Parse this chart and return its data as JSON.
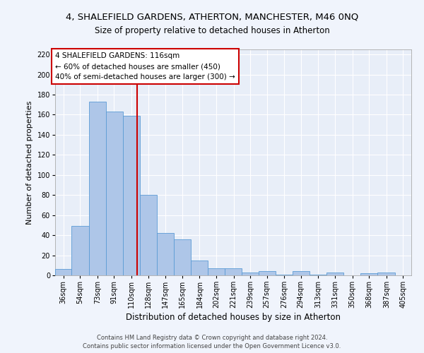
{
  "title1": "4, SHALEFIELD GARDENS, ATHERTON, MANCHESTER, M46 0NQ",
  "title2": "Size of property relative to detached houses in Atherton",
  "xlabel": "Distribution of detached houses by size in Atherton",
  "ylabel": "Number of detached properties",
  "categories": [
    "36sqm",
    "54sqm",
    "73sqm",
    "91sqm",
    "110sqm",
    "128sqm",
    "147sqm",
    "165sqm",
    "184sqm",
    "202sqm",
    "221sqm",
    "239sqm",
    "257sqm",
    "276sqm",
    "294sqm",
    "313sqm",
    "331sqm",
    "350sqm",
    "368sqm",
    "387sqm",
    "405sqm"
  ],
  "values": [
    6,
    49,
    173,
    163,
    159,
    80,
    42,
    36,
    15,
    7,
    7,
    3,
    4,
    1,
    4,
    1,
    3,
    0,
    2,
    3,
    0
  ],
  "bar_color": "#aec6e8",
  "bar_edge_color": "#5b9bd5",
  "vline_x": 116,
  "vline_color": "#cc0000",
  "ylim": [
    0,
    225
  ],
  "yticks": [
    0,
    20,
    40,
    60,
    80,
    100,
    120,
    140,
    160,
    180,
    200,
    220
  ],
  "annotation_text": "4 SHALEFIELD GARDENS: 116sqm\n← 60% of detached houses are smaller (450)\n40% of semi-detached houses are larger (300) →",
  "annotation_box_color": "#ffffff",
  "annotation_box_edge": "#cc0000",
  "footnote1": "Contains HM Land Registry data © Crown copyright and database right 2024.",
  "footnote2": "Contains public sector information licensed under the Open Government Licence v3.0.",
  "bg_color": "#e8eef8",
  "fig_color": "#f0f4fc",
  "grid_color": "#ffffff",
  "title1_fontsize": 9.5,
  "title2_fontsize": 8.5,
  "xlabel_fontsize": 8.5,
  "ylabel_fontsize": 8,
  "tick_fontsize": 7,
  "annotation_fontsize": 7.5,
  "footnote_fontsize": 6
}
